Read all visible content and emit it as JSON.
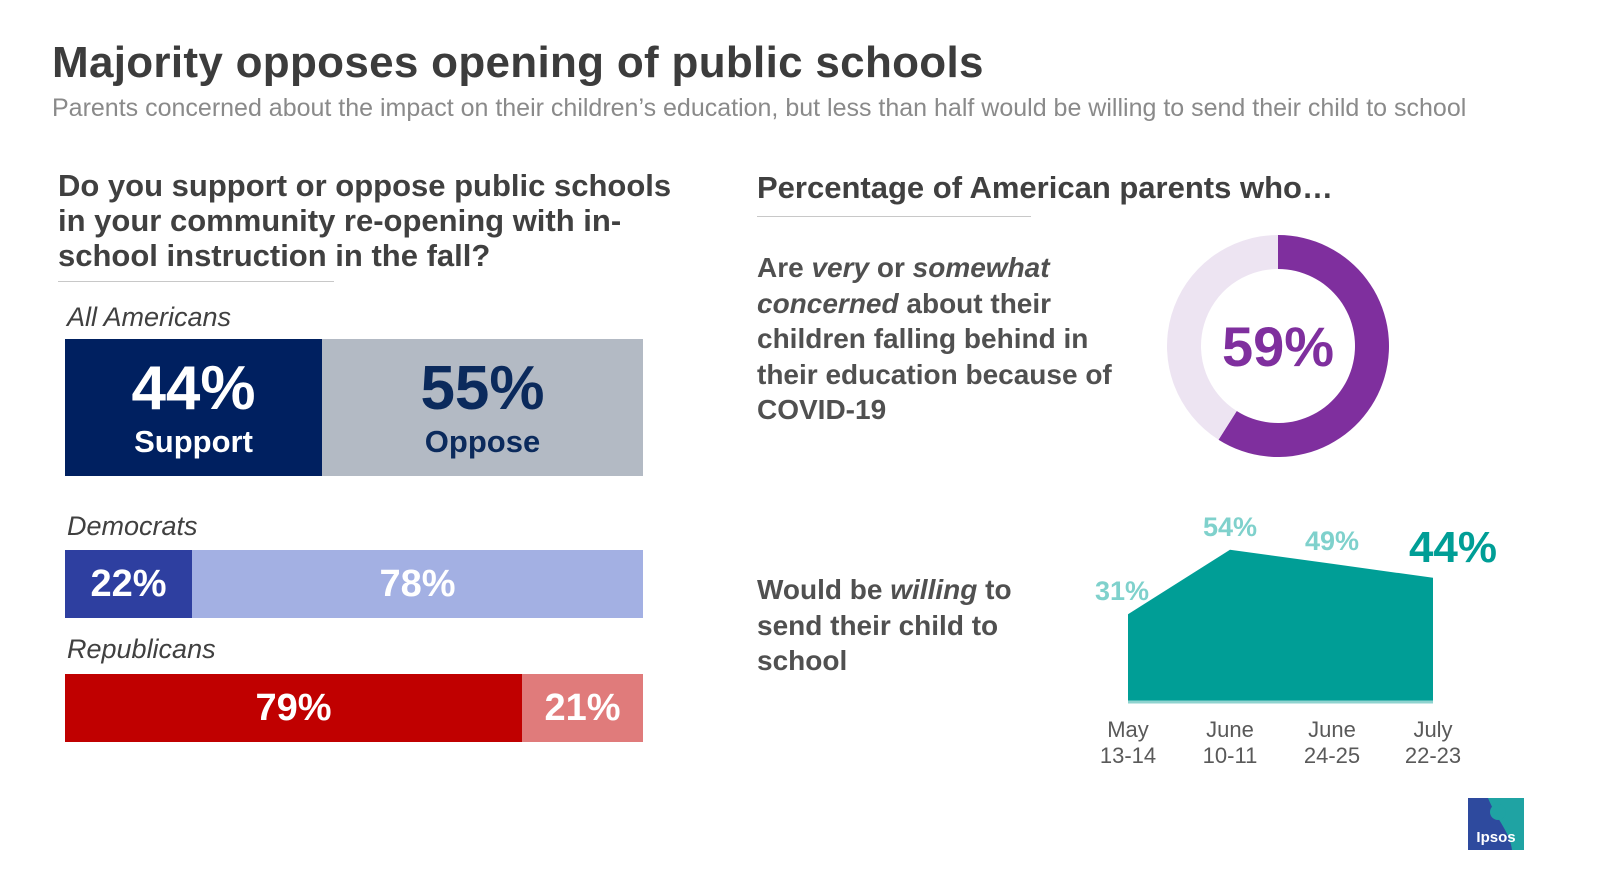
{
  "title": "Majority opposes opening of public schools",
  "subtitle": "Parents concerned about the impact on their children’s education, but less than half would be willing to send their child to school",
  "left": {
    "question": "Do you support or oppose public schools in your community re-opening with in-school instruction in the fall?"
  },
  "right": {
    "header": "Percentage of American parents who…",
    "concern": {
      "p1": "Are ",
      "em1": "very",
      "p2": " or ",
      "em2": "somewhat",
      "p3": " ",
      "em3": "concerned",
      "p4": " about their children falling behind in their education because of COVID-19"
    },
    "willing": {
      "p1": "Would be ",
      "em1": "willing",
      "p2": " to send their child to school"
    }
  },
  "logo_text": "Ipsos",
  "colors": {
    "support_all": "#002060",
    "oppose_all": "#B3BAC4",
    "support_dem": "#2E3FA0",
    "oppose_dem": "#A3B0E3",
    "support_rep": "#C00000",
    "oppose_rep": "#E07B7B",
    "donut_fill": "#7F2F9E",
    "donut_track": "#EDE4F2",
    "area_fill": "#009E96",
    "area_label_light": "#7FD1CC",
    "area_label_last": "#009E96"
  },
  "chart_data": [
    {
      "type": "bar",
      "subtype": "stacked-horizontal-100",
      "categories": [
        "All Americans",
        "Democrats",
        "Republicans"
      ],
      "series": [
        {
          "name": "Support",
          "values": [
            44,
            22,
            79
          ],
          "labels": [
            "44%",
            "22%",
            "79%"
          ]
        },
        {
          "name": "Oppose",
          "values": [
            55,
            78,
            21
          ],
          "labels": [
            "55%",
            "78%",
            "21%"
          ]
        }
      ],
      "segment_names": {
        "support": "Support",
        "oppose": "Oppose"
      },
      "title": "Do you support or oppose public schools in your community re-opening with in-school instruction in the fall?",
      "xlim": [
        0,
        100
      ]
    },
    {
      "type": "pie",
      "subtype": "donut",
      "values": [
        59,
        41
      ],
      "center_label": "59%",
      "description": "Are very or somewhat concerned about their children falling behind in their education because of COVID-19"
    },
    {
      "type": "area",
      "categories": [
        "May 13-14",
        "June 10-11",
        "June 24-25",
        "July 22-23"
      ],
      "tick_lines": [
        [
          "May",
          "13-14"
        ],
        [
          "June",
          "10-11"
        ],
        [
          "June",
          "24-25"
        ],
        [
          "July",
          "22-23"
        ]
      ],
      "values": [
        31,
        54,
        49,
        44
      ],
      "labels": [
        "31%",
        "54%",
        "49%",
        "44%"
      ],
      "ylim": [
        0,
        60
      ],
      "description": "Would be willing to send their child to school"
    }
  ]
}
